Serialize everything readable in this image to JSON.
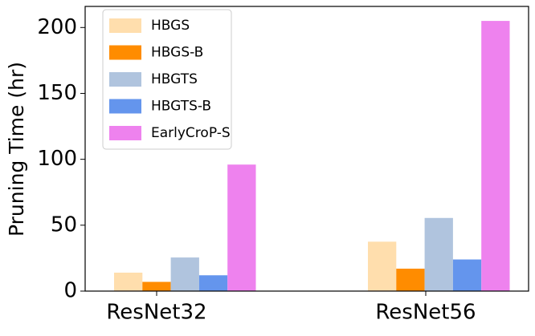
{
  "chart_data": {
    "type": "bar",
    "y_label": "Pruning Time (hr)",
    "categories": [
      "ResNet32",
      "ResNet56"
    ],
    "series": [
      {
        "name": "HBGS",
        "color": "#ffdead",
        "values": [
          14,
          37.5
        ]
      },
      {
        "name": "HBGS-B",
        "color": "#ff8c00",
        "values": [
          7,
          17
        ]
      },
      {
        "name": "HBGTS",
        "color": "#b0c4de",
        "values": [
          25.5,
          55.5
        ]
      },
      {
        "name": "HBGTS-B",
        "color": "#6495ed",
        "values": [
          12,
          24
        ]
      },
      {
        "name": "EarlyCroP-S",
        "color": "#ee82ee",
        "values": [
          96,
          205
        ]
      }
    ],
    "ylim": [
      0,
      216
    ],
    "yticks": [
      0,
      50,
      100,
      150,
      200
    ],
    "legend": "upper left"
  }
}
